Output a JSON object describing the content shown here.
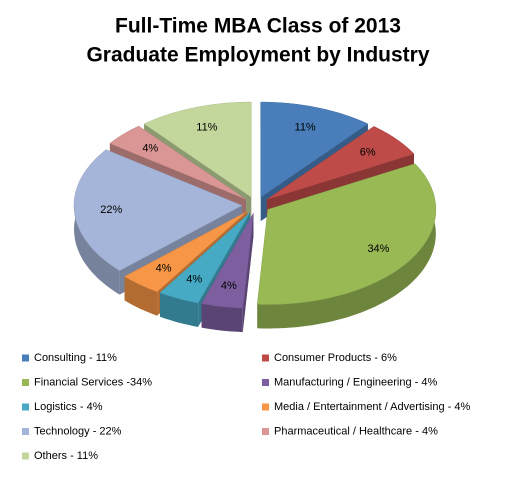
{
  "chart_data": {
    "type": "pie3d",
    "title": "Full-Time MBA Class of 2013",
    "subtitle": "Graduate Employment by Industry",
    "categories": [
      "Consulting - 11%",
      "Consumer Products - 6%",
      "Financial Services -34%",
      "Manufacturing / Engineering - 4%",
      "Logistics - 4%",
      "Media / Entertainment / Advertising - 4%",
      "Technology - 22%",
      "Pharmaceutical / Healthcare - 4%",
      "Others - 11%"
    ],
    "values": [
      11,
      6,
      34,
      4,
      4,
      4,
      22,
      4,
      11
    ],
    "value_labels": [
      "11%",
      "6%",
      "34%",
      "4%",
      "4%",
      "4%",
      "22%",
      "4%",
      "11%"
    ],
    "colors": [
      "#4a7ebb",
      "#be4b48",
      "#98b954",
      "#7d5fa0",
      "#46aac5",
      "#f79646",
      "#a5b5d9",
      "#d99694",
      "#c3d69b"
    ]
  }
}
